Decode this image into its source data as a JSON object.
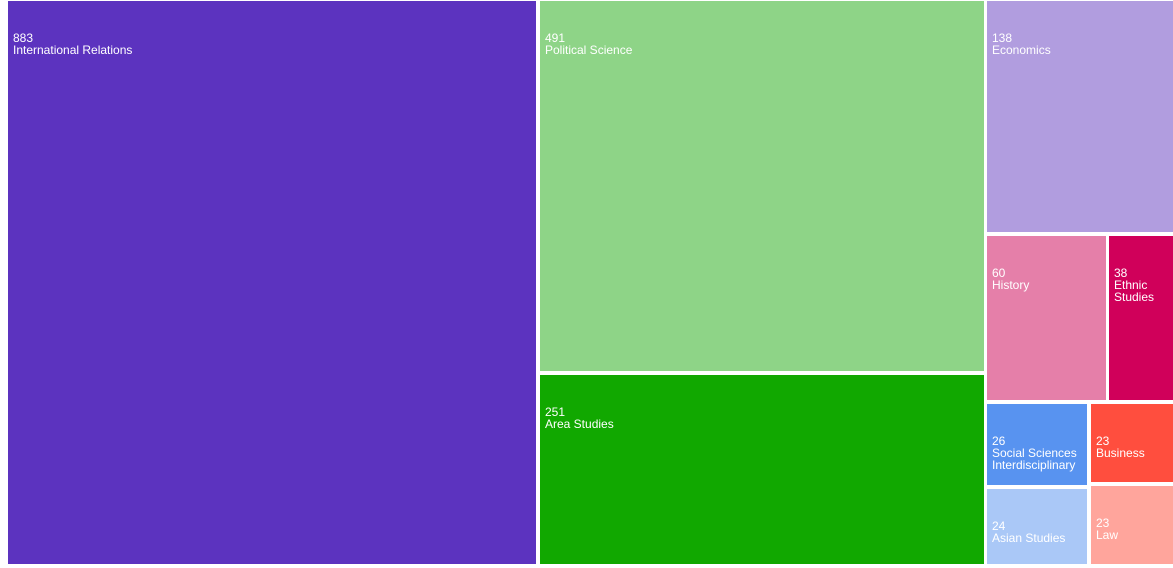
{
  "chart_data": {
    "type": "treemap",
    "items": [
      {
        "name": "International Relations",
        "value": 883,
        "color": "#5c33bf"
      },
      {
        "name": "Political Science",
        "value": 491,
        "color": "#8ed487"
      },
      {
        "name": "Area Studies",
        "value": 251,
        "color": "#11a800"
      },
      {
        "name": "Economics",
        "value": 138,
        "color": "#b19ddf"
      },
      {
        "name": "History",
        "value": 60,
        "color": "#e57fa9"
      },
      {
        "name": "Ethnic Studies",
        "value": 38,
        "color": "#d0005a"
      },
      {
        "name": "Social Sciences Interdisciplinary",
        "value": 26,
        "color": "#5893f0"
      },
      {
        "name": "Business",
        "value": 23,
        "color": "#ff4e3e"
      },
      {
        "name": "Asian Studies",
        "value": 24,
        "color": "#aac8f7"
      },
      {
        "name": "Law",
        "value": 23,
        "color": "#ffa59c"
      }
    ]
  }
}
